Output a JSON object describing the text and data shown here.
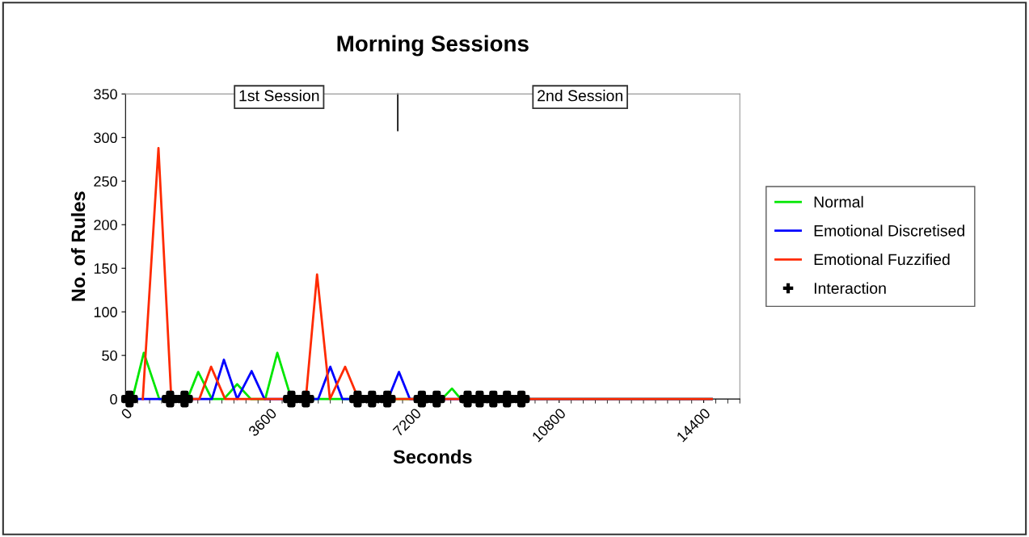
{
  "chart_data": {
    "type": "line",
    "title": "Morning Sessions",
    "xlabel": "Seconds",
    "ylabel": "No. of Rules",
    "xlim": [
      0,
      15300
    ],
    "ylim": [
      0,
      350
    ],
    "yticks": [
      0,
      50,
      100,
      150,
      200,
      250,
      300,
      350
    ],
    "xticks": [
      0,
      3600,
      7200,
      10800,
      14400
    ],
    "series": [
      {
        "name": "Normal",
        "color": "#00e600",
        "x": [
          0,
          170,
          455,
          840,
          1540,
          1810,
          2150,
          2450,
          2780,
          3120,
          3480,
          3780,
          4130,
          7880,
          8130,
          8350,
          14600
        ],
        "values": [
          0,
          0,
          53,
          0,
          0,
          31,
          0,
          0,
          17,
          0,
          0,
          53,
          0,
          0,
          12,
          0,
          0
        ]
      },
      {
        "name": "Emotional Discretised",
        "color": "#0000ff",
        "x": [
          0,
          2150,
          2450,
          2780,
          3140,
          3460,
          4800,
          5100,
          5400,
          6540,
          6810,
          7080,
          14600
        ],
        "values": [
          0,
          0,
          45,
          0,
          32,
          0,
          0,
          37,
          0,
          0,
          31,
          0,
          0
        ]
      },
      {
        "name": "Emotional Fuzzified",
        "color": "#ff2a00",
        "x": [
          430,
          820,
          1140,
          1840,
          2130,
          2480,
          4490,
          4770,
          5090,
          5470,
          5800,
          14600
        ],
        "values": [
          0,
          288,
          0,
          0,
          37,
          0,
          0,
          143,
          0,
          37,
          0,
          0
        ]
      },
      {
        "name": "Interaction",
        "type": "scatter",
        "marker": "cross",
        "color": "#000000",
        "x": [
          100,
          1110,
          1470,
          4130,
          4490,
          5780,
          6140,
          6520,
          7380,
          7750,
          8520,
          8820,
          9160,
          9500,
          9860
        ],
        "values": [
          0,
          0,
          0,
          0,
          0,
          0,
          0,
          0,
          0,
          0,
          0,
          0,
          0,
          0,
          0
        ]
      }
    ],
    "ref_lines": [
      {
        "axis": "x",
        "value": 6780,
        "color": "#000000"
      }
    ],
    "annotations": [
      "1st Session",
      "2nd Session"
    ],
    "grid": false,
    "legend": "right",
    "marker": "none",
    "line_style": "solid"
  }
}
